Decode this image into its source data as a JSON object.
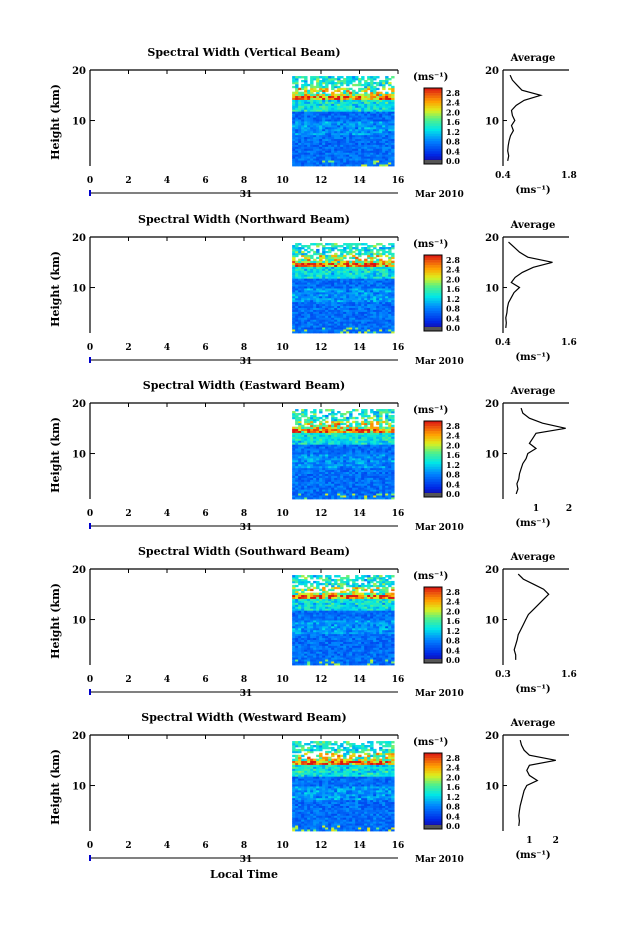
{
  "figure": {
    "date_label": "Mar 2010",
    "day_label": "31",
    "xlabel": "Local Time",
    "ylabel": "Height (km)",
    "x_ticks": [
      "0",
      "2",
      "4",
      "6",
      "8",
      "10",
      "12",
      "14",
      "16"
    ],
    "y_ticks": [
      "20",
      "10"
    ],
    "colorbar_unit": "(ms⁻¹)",
    "colorbar_ticks": [
      "2.8",
      "2.4",
      "2.0",
      "1.6",
      "1.2",
      "0.8",
      "0.4",
      "0.0"
    ],
    "average_title": "Average",
    "average_unit": "(ms⁻¹)"
  },
  "chart_data": [
    {
      "type": "heatmap",
      "title": "Spectral Width (Vertical Beam)",
      "xlim": [
        0,
        16
      ],
      "ylim": [
        1,
        20
      ],
      "data_start_hour": 10.5,
      "data_end_hour": 15.8,
      "color_range": [
        0.0,
        3.0
      ],
      "profile": {
        "type": "line",
        "title": "Average",
        "xlim": [
          0.4,
          1.8
        ],
        "x_ticks": [
          "0.4",
          "1.8"
        ],
        "heights": [
          2,
          3,
          4,
          5,
          6,
          7,
          8,
          9,
          10,
          11,
          12,
          13,
          14,
          15,
          16,
          17,
          18,
          19
        ],
        "values": [
          0.5,
          0.52,
          0.5,
          0.51,
          0.53,
          0.56,
          0.62,
          0.58,
          0.65,
          0.6,
          0.58,
          0.68,
          0.85,
          1.2,
          0.8,
          0.7,
          0.6,
          0.55
        ]
      }
    },
    {
      "type": "heatmap",
      "title": "Spectral Width (Northward Beam)",
      "xlim": [
        0,
        16
      ],
      "ylim": [
        1,
        20
      ],
      "data_start_hour": 10.5,
      "data_end_hour": 15.8,
      "color_range": [
        0.0,
        3.0
      ],
      "profile": {
        "type": "line",
        "title": "Average",
        "xlim": [
          0.4,
          1.6
        ],
        "x_ticks": [
          "0.4",
          "1.6"
        ],
        "heights": [
          2,
          3,
          4,
          5,
          6,
          7,
          8,
          9,
          10,
          11,
          12,
          13,
          14,
          15,
          16,
          17,
          18,
          19
        ],
        "values": [
          0.45,
          0.46,
          0.45,
          0.47,
          0.48,
          0.5,
          0.55,
          0.6,
          0.7,
          0.55,
          0.62,
          0.75,
          0.95,
          1.3,
          0.85,
          0.7,
          0.6,
          0.5
        ]
      }
    },
    {
      "type": "heatmap",
      "title": "Spectral Width (Eastward Beam)",
      "xlim": [
        0,
        16
      ],
      "ylim": [
        1,
        20
      ],
      "data_start_hour": 10.5,
      "data_end_hour": 15.8,
      "color_range": [
        0.0,
        3.0
      ],
      "profile": {
        "type": "line",
        "title": "Average",
        "xlim": [
          0,
          2
        ],
        "x_ticks": [
          "1",
          "2"
        ],
        "heights": [
          2,
          3,
          4,
          5,
          6,
          7,
          8,
          9,
          10,
          11,
          12,
          13,
          14,
          15,
          16,
          17,
          18,
          19
        ],
        "values": [
          0.4,
          0.45,
          0.42,
          0.48,
          0.5,
          0.55,
          0.6,
          0.7,
          0.75,
          1.0,
          0.8,
          0.9,
          1.0,
          1.9,
          1.2,
          0.8,
          0.6,
          0.55
        ]
      }
    },
    {
      "type": "heatmap",
      "title": "Spectral Width (Southward Beam)",
      "xlim": [
        0,
        16
      ],
      "ylim": [
        1,
        20
      ],
      "data_start_hour": 10.5,
      "data_end_hour": 15.8,
      "color_range": [
        0.0,
        3.0
      ],
      "profile": {
        "type": "line",
        "title": "Average",
        "xlim": [
          0.3,
          1.6
        ],
        "x_ticks": [
          "0.3",
          "1.6"
        ],
        "heights": [
          2,
          3,
          4,
          5,
          6,
          7,
          8,
          9,
          10,
          11,
          12,
          13,
          14,
          15,
          16,
          17,
          18,
          19
        ],
        "values": [
          0.55,
          0.55,
          0.52,
          0.55,
          0.58,
          0.6,
          0.65,
          0.7,
          0.75,
          0.8,
          0.9,
          1.0,
          1.1,
          1.2,
          1.1,
          0.9,
          0.7,
          0.6
        ]
      }
    },
    {
      "type": "heatmap",
      "title": "Spectral Width (Westward Beam)",
      "xlim": [
        0,
        16
      ],
      "ylim": [
        1,
        20
      ],
      "data_start_hour": 10.5,
      "data_end_hour": 15.8,
      "color_range": [
        0.0,
        3.0
      ],
      "profile": {
        "type": "line",
        "title": "Average",
        "xlim": [
          0,
          2.5
        ],
        "x_ticks": [
          "1",
          "2"
        ],
        "heights": [
          2,
          3,
          4,
          5,
          6,
          7,
          8,
          9,
          10,
          11,
          12,
          13,
          14,
          15,
          16,
          17,
          18,
          19
        ],
        "values": [
          0.6,
          0.62,
          0.6,
          0.62,
          0.65,
          0.7,
          0.75,
          0.8,
          0.9,
          1.3,
          1.0,
          0.9,
          1.0,
          2.0,
          1.0,
          0.8,
          0.7,
          0.65
        ]
      }
    }
  ]
}
